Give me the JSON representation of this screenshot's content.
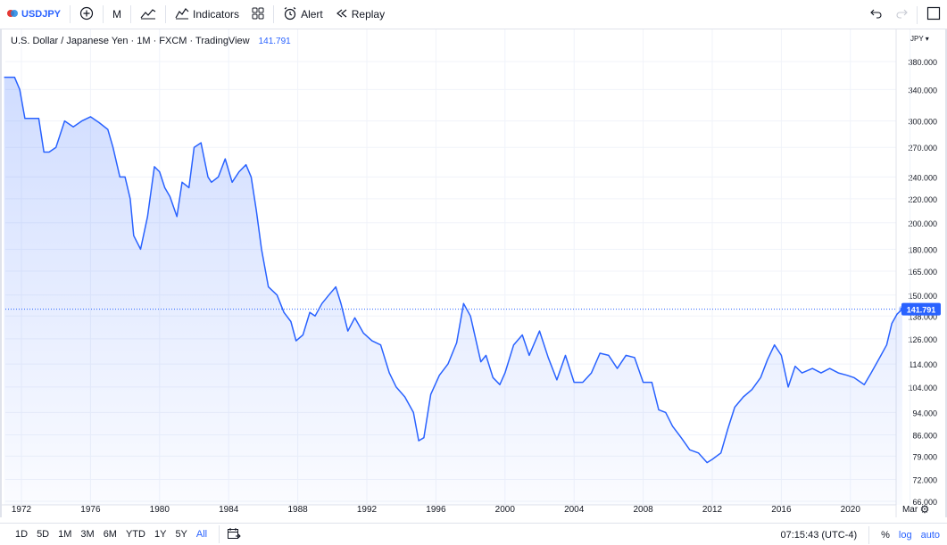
{
  "toolbar": {
    "symbol": "USDJPY",
    "interval": "M",
    "indicators_label": "Indicators",
    "alert_label": "Alert",
    "replay_label": "Replay"
  },
  "legend": {
    "title": "U.S. Dollar / Japanese Yen · 1M · FXCM · TradingView",
    "price": "141.791"
  },
  "bottom": {
    "ranges": [
      "1D",
      "5D",
      "1M",
      "3M",
      "6M",
      "YTD",
      "1Y",
      "5Y",
      "All"
    ],
    "active_range": "All",
    "time": "07:15:43 (UTC-4)",
    "percent": "%",
    "log": "log",
    "auto": "auto"
  },
  "colors": {
    "line": "#2962ff",
    "grid": "#f0f3fa",
    "text": "#131722"
  },
  "chart_data": {
    "type": "area",
    "title": "U.S. Dollar / Japanese Yen · 1M · FXCM · TradingView",
    "xlabel": "",
    "ylabel": "",
    "y_unit": "JPY",
    "y_scale": "log",
    "last_price": "141.791",
    "grid": true,
    "y_ticks": [
      "380.000",
      "340.000",
      "300.000",
      "270.000",
      "240.000",
      "220.000",
      "200.000",
      "180.000",
      "165.000",
      "150.000",
      "138.000",
      "126.000",
      "114.000",
      "104.000",
      "94.000",
      "86.000",
      "79.000",
      "72.000",
      "66.000"
    ],
    "x_ticks": [
      "1972",
      "1976",
      "1980",
      "1984",
      "1988",
      "1992",
      "1996",
      "2000",
      "2004",
      "2008",
      "2012",
      "2016",
      "2020",
      "Mar"
    ],
    "x": [
      1971.0,
      1971.6,
      1971.9,
      1972.2,
      1973.0,
      1973.3,
      1973.6,
      1974.0,
      1974.5,
      1975.0,
      1975.5,
      1976.0,
      1976.5,
      1977.0,
      1977.3,
      1977.7,
      1978.0,
      1978.3,
      1978.5,
      1978.9,
      1979.3,
      1979.7,
      1980.0,
      1980.3,
      1980.6,
      1981.0,
      1981.3,
      1981.7,
      1982.0,
      1982.4,
      1982.8,
      1983.0,
      1983.4,
      1983.8,
      1984.2,
      1984.6,
      1985.0,
      1985.3,
      1985.6,
      1985.9,
      1986.3,
      1986.8,
      1987.2,
      1987.6,
      1987.9,
      1988.3,
      1988.7,
      1989.0,
      1989.4,
      1989.8,
      1990.2,
      1990.5,
      1990.9,
      1991.3,
      1991.8,
      1992.3,
      1992.8,
      1993.3,
      1993.7,
      1994.2,
      1994.7,
      1995.0,
      1995.3,
      1995.7,
      1996.2,
      1996.7,
      1997.2,
      1997.6,
      1998.0,
      1998.6,
      1998.9,
      1999.3,
      1999.7,
      2000.0,
      2000.5,
      2001.0,
      2001.4,
      2002.0,
      2002.5,
      2003.0,
      2003.5,
      2004.0,
      2004.5,
      2005.0,
      2005.5,
      2006.0,
      2006.5,
      2007.0,
      2007.5,
      2008.0,
      2008.5,
      2008.9,
      2009.3,
      2009.7,
      2010.2,
      2010.7,
      2011.2,
      2011.7,
      2012.0,
      2012.5,
      2012.9,
      2013.3,
      2013.8,
      2014.3,
      2014.8,
      2015.2,
      2015.6,
      2016.0,
      2016.4,
      2016.8,
      2017.2,
      2017.8,
      2018.3,
      2018.8,
      2019.3,
      2019.8,
      2020.2,
      2020.8,
      2021.2,
      2021.7,
      2022.1,
      2022.4,
      2022.7,
      2023.0
    ],
    "values": [
      357,
      357,
      340,
      303,
      303,
      265,
      265,
      270,
      300,
      293,
      300,
      305,
      298,
      290,
      270,
      240,
      240,
      220,
      190,
      180,
      205,
      250,
      245,
      230,
      222,
      205,
      235,
      230,
      270,
      275,
      240,
      235,
      240,
      258,
      235,
      245,
      252,
      240,
      210,
      180,
      155,
      150,
      140,
      135,
      125,
      128,
      140,
      138,
      145,
      150,
      155,
      145,
      130,
      137,
      129,
      125,
      123,
      110,
      104,
      100,
      94,
      84,
      85,
      101,
      109,
      114,
      124,
      145,
      138,
      115,
      118,
      108,
      105,
      110,
      123,
      128,
      118,
      130,
      117,
      107,
      118,
      106,
      106,
      110,
      119,
      118,
      112,
      118,
      117,
      106,
      106,
      95,
      94,
      89,
      85,
      81,
      80,
      77,
      78,
      80,
      88,
      96,
      100,
      103,
      108,
      116,
      123,
      118,
      104,
      113,
      110,
      112,
      110,
      112,
      110,
      109,
      108,
      105,
      110,
      117,
      123,
      134,
      139,
      141.791
    ]
  }
}
